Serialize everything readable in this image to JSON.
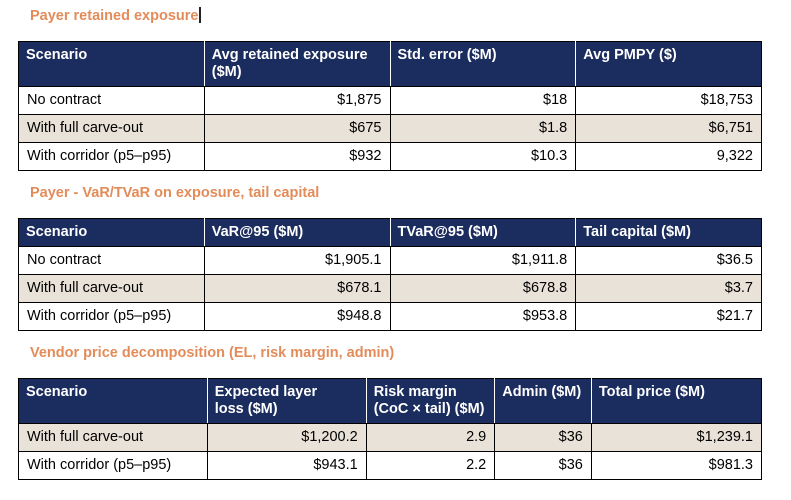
{
  "colors": {
    "header_bg": "#1b2c5e",
    "header_text": "#ffffff",
    "shaded_row_bg": "#e9e2d8",
    "row_bg": "#ffffff",
    "title": "#e28c5a",
    "border": "#000000",
    "cursor": "#222222"
  },
  "sections": [
    {
      "title": "Payer retained exposure",
      "cursor_after_title": true,
      "columns": [
        "Scenario",
        "Avg retained exposure\n($M)",
        "Std. error ($M)",
        "Avg PMPY ($)"
      ],
      "col_widths": [
        "25%",
        "25%",
        "25%",
        "25%"
      ],
      "rows": [
        {
          "shaded": false,
          "cells": [
            "No contract",
            "$1,875",
            "$18",
            "$18,753"
          ]
        },
        {
          "shaded": true,
          "cells": [
            "With full carve-out",
            "$675",
            "$1.8",
            "$6,751"
          ]
        },
        {
          "shaded": false,
          "cells": [
            "With corridor (p5–p95)",
            "$932",
            "$10.3",
            "9,322"
          ]
        }
      ]
    },
    {
      "title": "Payer - VaR/TVaR on exposure, tail capital",
      "cursor_after_title": false,
      "columns": [
        "Scenario",
        "VaR@95 ($M)",
        "TVaR@95 ($M)",
        "Tail capital ($M)"
      ],
      "col_widths": [
        "25%",
        "25%",
        "25%",
        "25%"
      ],
      "rows": [
        {
          "shaded": false,
          "cells": [
            "No contract",
            "$1,905.1",
            "$1,911.8",
            "$36.5"
          ]
        },
        {
          "shaded": true,
          "cells": [
            "With full carve-out",
            "$678.1",
            "$678.8",
            "$3.7"
          ]
        },
        {
          "shaded": false,
          "cells": [
            "With corridor (p5–p95)",
            "$948.8",
            "$953.8",
            "$21.7"
          ]
        }
      ]
    },
    {
      "title": "Vendor price decomposition (EL, risk margin, admin)",
      "cursor_after_title": false,
      "columns": [
        "Scenario",
        "Expected layer\nloss ($M)",
        "Risk margin\n(CoC × tail) ($M)",
        "Admin ($M)",
        "Total price ($M)"
      ],
      "col_widths": [
        "25.4%",
        "21.4%",
        "17.3%",
        "13%",
        "22.9%"
      ],
      "rows": [
        {
          "shaded": true,
          "cells": [
            "With full carve-out",
            "$1,200.2",
            "2.9",
            "$36",
            "$1,239.1"
          ]
        },
        {
          "shaded": false,
          "cells": [
            "With corridor (p5–p95)",
            "$943.1",
            "2.2",
            "$36",
            "$981.3"
          ]
        }
      ]
    }
  ]
}
